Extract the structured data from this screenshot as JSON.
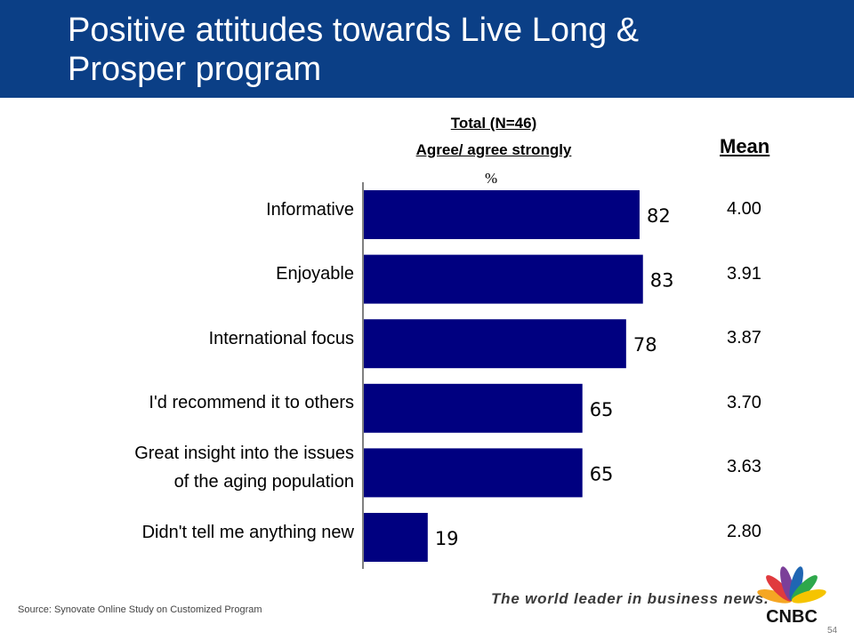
{
  "slide": {
    "title_line1": "Positive attitudes towards Live Long &",
    "title_line2": "Prosper program",
    "header_line1": "Total (N=46)",
    "header_line2": "Agree/ agree strongly",
    "header_unit": "%",
    "mean_header": "Mean",
    "source": "Source: Synovate Online Study on Customized Program",
    "slogan": "The world leader in business news.",
    "logo_text": "CNBC",
    "page_number": "54"
  },
  "chart_data": {
    "type": "bar",
    "orientation": "horizontal",
    "categories": [
      "Informative",
      "Enjoyable",
      "International focus",
      "I'd recommend it to others",
      "Great insight into the issues of the aging population",
      "Didn't tell me anything new"
    ],
    "category_lines": [
      [
        "Informative"
      ],
      [
        "Enjoyable"
      ],
      [
        "International focus"
      ],
      [
        "I'd recommend it to others"
      ],
      [
        "Great insight into the issues",
        "of the aging population"
      ],
      [
        "Didn't tell me anything new"
      ]
    ],
    "values": [
      82,
      83,
      78,
      65,
      65,
      19
    ],
    "mean": [
      "4.00",
      "3.91",
      "3.87",
      "3.70",
      "3.63",
      "2.80"
    ],
    "xlim": [
      0,
      100
    ],
    "bar_color": "#000080",
    "grid": false
  }
}
